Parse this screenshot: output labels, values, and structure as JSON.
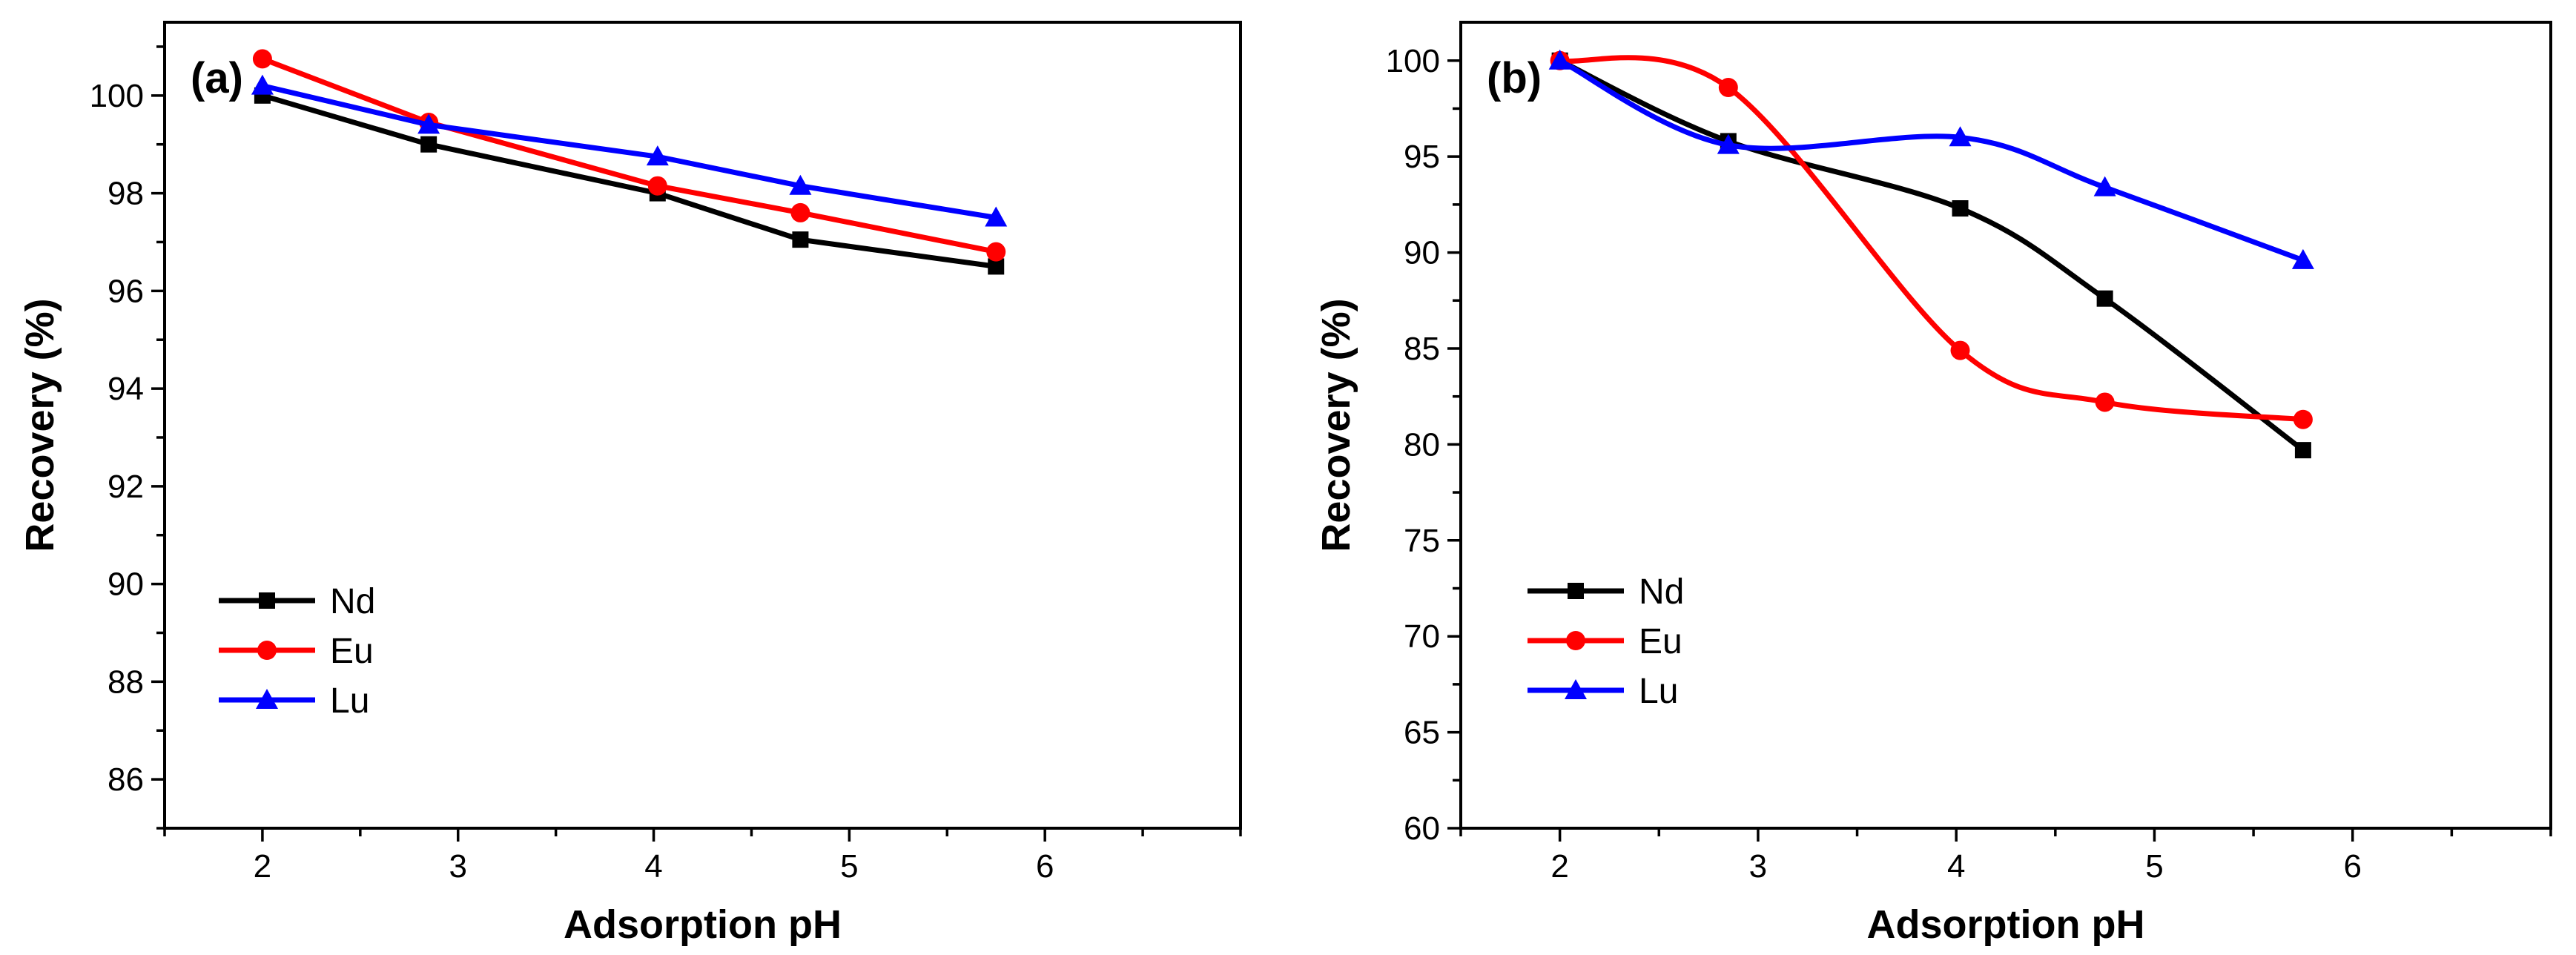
{
  "chart_data": [
    {
      "type": "line",
      "panel_label": "(a)",
      "xlabel": "Adsorption pH",
      "ylabel": "Recovery (%)",
      "xlim": [
        1.5,
        7.0
      ],
      "ylim": [
        85.0,
        101.5
      ],
      "xticks": [
        2,
        3,
        4,
        5,
        6
      ],
      "yticks": [
        86,
        88,
        90,
        92,
        94,
        96,
        98,
        100
      ],
      "x_minor_step": 0.5,
      "y_minor_step": 1,
      "curve": "polyline",
      "legend_position": "lower-left",
      "series": [
        {
          "name": "Nd",
          "color": "#000000",
          "marker": "square",
          "x": [
            2.0,
            2.85,
            4.02,
            4.75,
            5.75
          ],
          "y": [
            100.0,
            99.0,
            98.0,
            97.05,
            96.5
          ]
        },
        {
          "name": "Eu",
          "color": "#ff0000",
          "marker": "circle",
          "x": [
            2.0,
            2.85,
            4.02,
            4.75,
            5.75
          ],
          "y": [
            100.75,
            99.45,
            98.15,
            97.6,
            96.8
          ]
        },
        {
          "name": "Lu",
          "color": "#0000ff",
          "marker": "triangle",
          "x": [
            2.0,
            2.85,
            4.02,
            4.75,
            5.75
          ],
          "y": [
            100.2,
            99.4,
            98.75,
            98.15,
            97.5
          ]
        }
      ]
    },
    {
      "type": "line",
      "panel_label": "(b)",
      "xlabel": "Adsorption pH",
      "ylabel": "Recovery (%)",
      "xlim": [
        1.5,
        7.0
      ],
      "ylim": [
        60,
        102
      ],
      "xticks": [
        2,
        3,
        4,
        5,
        6
      ],
      "yticks": [
        60,
        65,
        70,
        75,
        80,
        85,
        90,
        95,
        100
      ],
      "x_minor_step": 0.5,
      "y_minor_step": 2.5,
      "curve": "smooth",
      "legend_position": "middle-left",
      "series": [
        {
          "name": "Nd",
          "color": "#000000",
          "marker": "square",
          "x": [
            2.0,
            2.85,
            4.02,
            4.75,
            5.75
          ],
          "y": [
            100.0,
            95.8,
            92.3,
            87.6,
            79.7
          ]
        },
        {
          "name": "Eu",
          "color": "#ff0000",
          "marker": "circle",
          "x": [
            2.0,
            2.85,
            4.02,
            4.75,
            5.75
          ],
          "y": [
            100.0,
            98.6,
            84.9,
            82.2,
            81.3
          ]
        },
        {
          "name": "Lu",
          "color": "#0000ff",
          "marker": "triangle",
          "x": [
            2.0,
            2.85,
            4.02,
            4.75,
            5.75
          ],
          "y": [
            100.0,
            95.6,
            96.0,
            93.4,
            89.6
          ]
        }
      ]
    }
  ]
}
